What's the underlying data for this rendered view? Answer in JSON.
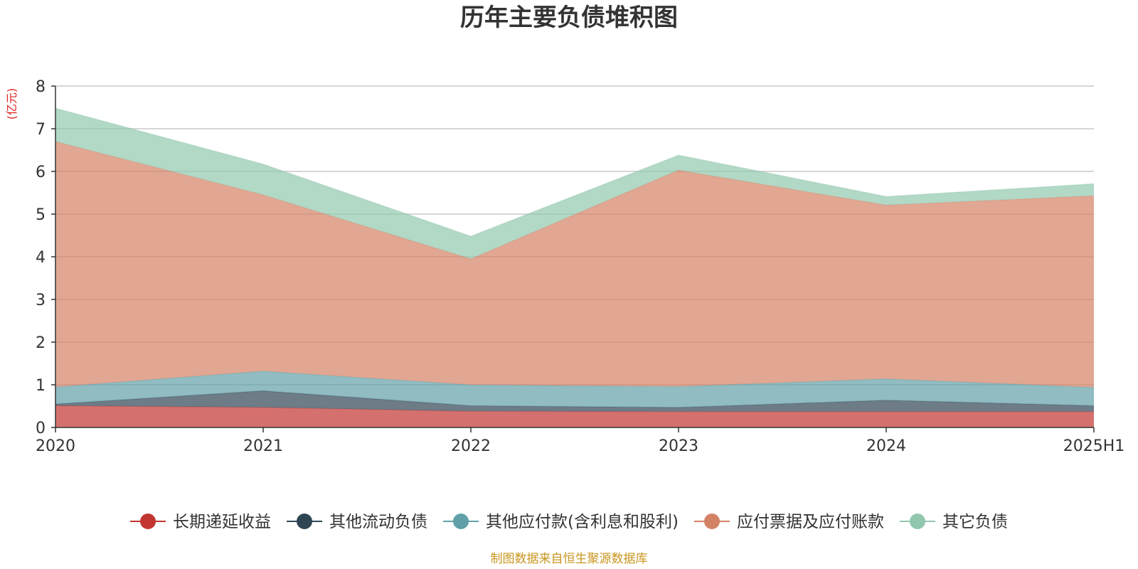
{
  "chart_data": {
    "type": "area",
    "stacked": true,
    "title": "历年主要负债堆积图",
    "unit": "(亿元)",
    "categories": [
      "2020",
      "2021",
      "2022",
      "2023",
      "2024",
      "2025H1"
    ],
    "ylim": [
      0,
      8
    ],
    "yticks": [
      "0",
      "1",
      "2",
      "3",
      "4",
      "5",
      "6",
      "7",
      "8"
    ],
    "grid": true,
    "legend_position": "bottom",
    "series": [
      {
        "name": "长期递延收益",
        "color": "#c23531",
        "values": [
          0.51,
          0.47,
          0.38,
          0.37,
          0.37,
          0.37
        ]
      },
      {
        "name": "其他流动负债",
        "color": "#2f4554",
        "values": [
          0.04,
          0.39,
          0.13,
          0.1,
          0.27,
          0.14
        ]
      },
      {
        "name": "其他应付款(含利息和股利)",
        "color": "#61a0a8",
        "values": [
          0.4,
          0.46,
          0.49,
          0.49,
          0.5,
          0.43
        ]
      },
      {
        "name": "应付票据及应付账款",
        "color": "#d48265",
        "values": [
          5.75,
          4.13,
          2.95,
          5.07,
          4.07,
          4.49
        ]
      },
      {
        "name": "其它负债",
        "color": "#91c7ae",
        "values": [
          0.78,
          0.72,
          0.53,
          0.35,
          0.2,
          0.28
        ]
      }
    ],
    "source": "制图数据来自恒生聚源数据库"
  }
}
